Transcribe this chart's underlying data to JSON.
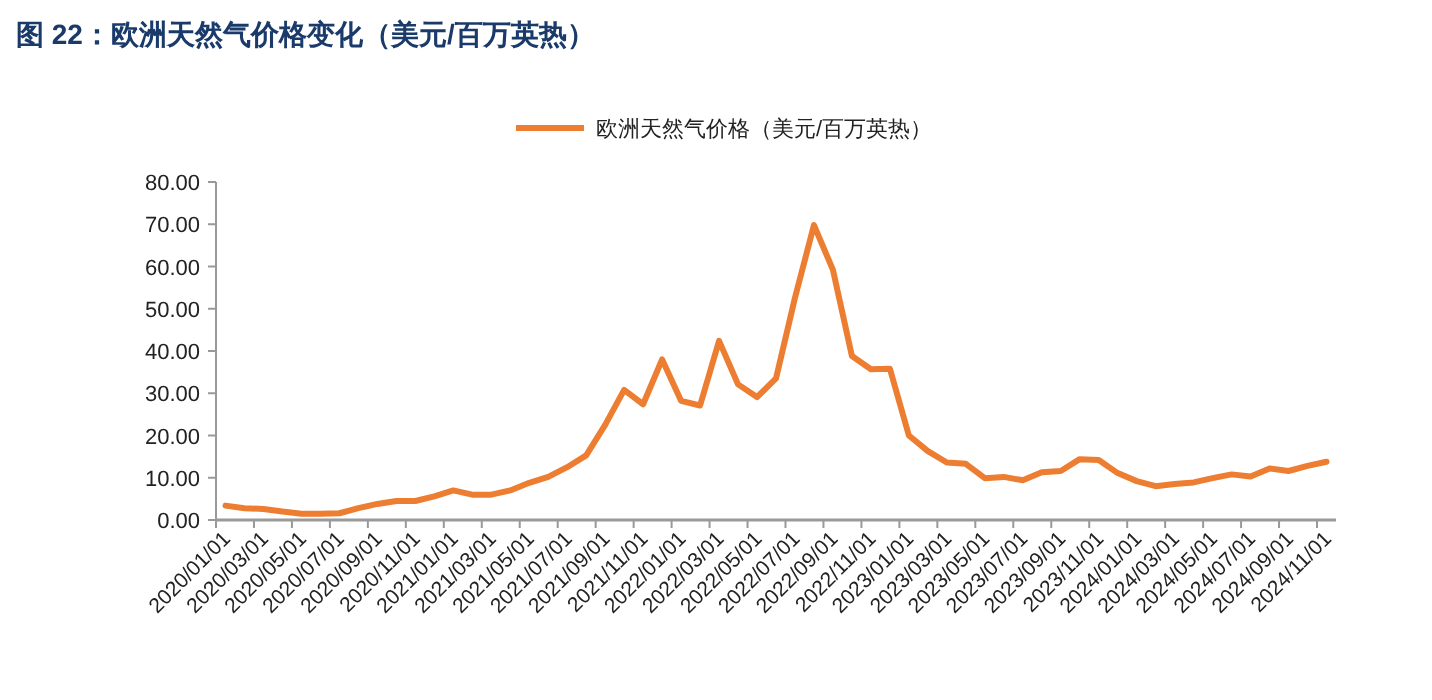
{
  "chart_data": {
    "type": "line",
    "title": "图 22：欧洲天然气价格变化（美元/百万英热）",
    "categories": [
      "2020/01/01",
      null,
      "2020/03/01",
      null,
      "2020/05/01",
      null,
      "2020/07/01",
      null,
      "2020/09/01",
      null,
      "2020/11/01",
      null,
      "2021/01/01",
      null,
      "2021/03/01",
      null,
      "2021/05/01",
      null,
      "2021/07/01",
      null,
      "2021/09/01",
      null,
      "2021/11/01",
      null,
      "2022/01/01",
      null,
      "2022/03/01",
      null,
      "2022/05/01",
      null,
      "2022/07/01",
      null,
      "2022/09/01",
      null,
      "2022/11/01",
      null,
      "2023/01/01",
      null,
      "2023/03/01",
      null,
      "2023/05/01",
      null,
      "2023/07/01",
      null,
      "2023/09/01",
      null,
      "2023/11/01",
      null,
      "2024/01/01",
      null,
      "2024/03/01",
      null,
      "2024/05/01",
      null,
      "2024/07/01",
      null,
      "2024/09/01",
      null,
      "2024/11/01"
    ],
    "series": [
      {
        "name": "欧洲天然气价格（美元/百万英热）",
        "color": "#ed7d31",
        "values": [
          3.4,
          2.8,
          2.6,
          2.0,
          1.5,
          1.5,
          1.6,
          2.8,
          3.8,
          4.5,
          4.5,
          5.6,
          7.0,
          6.0,
          6.0,
          7.0,
          8.8,
          10.2,
          12.5,
          15.3,
          22.5,
          30.8,
          27.4,
          38.0,
          28.2,
          27.1,
          42.4,
          32.1,
          29.1,
          33.5,
          52.6,
          69.8,
          59.2,
          38.8,
          35.7,
          35.8,
          20.0,
          16.3,
          13.6,
          13.3,
          9.9,
          10.2,
          9.4,
          11.3,
          11.6,
          14.4,
          14.2,
          11.1,
          9.2,
          8.0,
          8.5,
          8.9,
          9.9,
          10.8,
          10.3,
          12.2,
          11.6,
          12.8,
          13.8
        ]
      }
    ],
    "ylim": [
      0,
      80
    ],
    "yticks": [
      {
        "value": 0,
        "label": "0.00"
      },
      {
        "value": 10,
        "label": "10.00"
      },
      {
        "value": 20,
        "label": "20.00"
      },
      {
        "value": 30,
        "label": "30.00"
      },
      {
        "value": 40,
        "label": "40.00"
      },
      {
        "value": 50,
        "label": "50.00"
      },
      {
        "value": 60,
        "label": "60.00"
      },
      {
        "value": 70,
        "label": "70.00"
      },
      {
        "value": 80,
        "label": "80.00"
      }
    ],
    "legend": "top",
    "marker": "none",
    "line_style": "solid"
  }
}
